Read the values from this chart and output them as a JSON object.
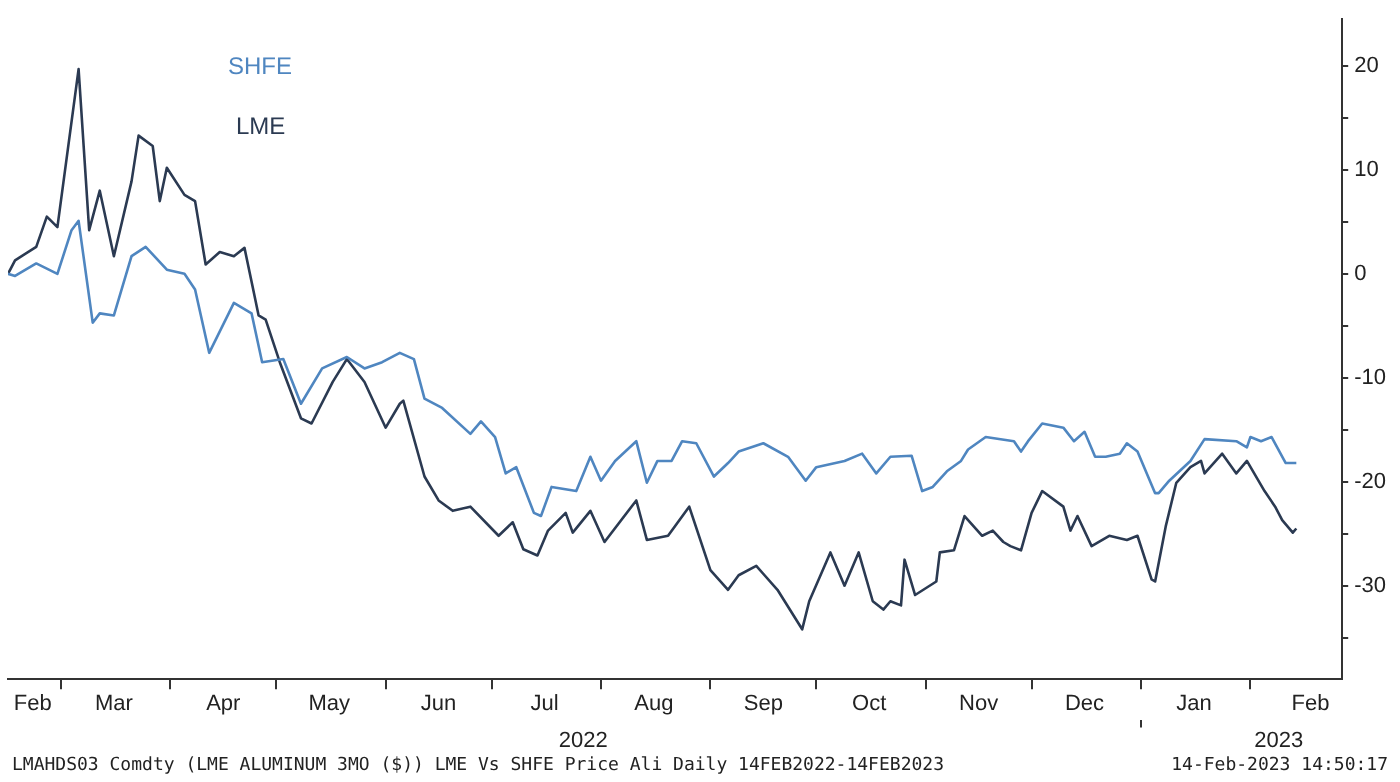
{
  "chart_data": {
    "type": "line",
    "legend": "top left",
    "marker": "none",
    "line_style": "solid",
    "xlim": [
      "2022-02-14",
      "2023-02-27"
    ],
    "xticks": [
      {
        "value": "2022-02-21",
        "label": "Feb"
      },
      {
        "value": "2022-03-01",
        "label": null
      },
      {
        "value": "2022-03-16",
        "label": "Mar"
      },
      {
        "value": "2022-04-01",
        "label": null
      },
      {
        "value": "2022-04-16",
        "label": "Apr"
      },
      {
        "value": "2022-05-01",
        "label": null
      },
      {
        "value": "2022-05-16",
        "label": "May"
      },
      {
        "value": "2022-06-01",
        "label": null
      },
      {
        "value": "2022-06-16",
        "label": "Jun"
      },
      {
        "value": "2022-07-01",
        "label": null
      },
      {
        "value": "2022-07-16",
        "label": "Jul"
      },
      {
        "value": "2022-08-01",
        "label": null
      },
      {
        "value": "2022-08-16",
        "label": "Aug"
      },
      {
        "value": "2022-09-01",
        "label": null
      },
      {
        "value": "2022-09-16",
        "label": "Sep"
      },
      {
        "value": "2022-10-01",
        "label": null
      },
      {
        "value": "2022-10-16",
        "label": "Oct"
      },
      {
        "value": "2022-11-01",
        "label": null
      },
      {
        "value": "2022-11-16",
        "label": "Nov"
      },
      {
        "value": "2022-12-01",
        "label": null
      },
      {
        "value": "2022-12-16",
        "label": "Dec"
      },
      {
        "value": "2023-01-01",
        "label": null
      },
      {
        "value": "2023-01-16",
        "label": "Jan"
      },
      {
        "value": "2023-02-01",
        "label": null
      },
      {
        "value": "2023-02-18",
        "label": "Feb"
      }
    ],
    "x2lim": [
      "2022-02-14",
      "2023-02-27"
    ],
    "x2ticks": [
      {
        "value": "2022-07-27",
        "label": "2022"
      },
      {
        "value": "2023-01-01",
        "label": null
      },
      {
        "value": "2023-02-09",
        "label": "2023"
      }
    ],
    "ylim": [
      -39,
      24.5
    ],
    "yticks": [
      -30,
      {
        "value": -35,
        "label": null
      },
      {
        "value": -25,
        "label": null
      },
      -20,
      {
        "value": -15,
        "label": null
      },
      -10,
      {
        "value": -5,
        "label": null
      },
      0,
      {
        "value": 5,
        "label": null
      },
      10,
      {
        "value": 15,
        "label": null
      },
      20
    ],
    "annotations": [
      "LMAHDS03 Comdty (LME ALUMINUM  3MO ($)) LME Vs SHFE Price Ali  Daily 14FEB2022-14FEB2023",
      "14-Feb-2023 14:50:17"
    ],
    "series": [
      {
        "name": "SHFE",
        "color": "#4f86c0",
        "x": [
          "2022-02-14",
          "2022-02-16",
          "2022-02-22",
          "2022-02-28",
          "2022-03-04",
          "2022-03-06",
          "2022-03-10",
          "2022-03-12",
          "2022-03-16",
          "2022-03-21",
          "2022-03-25",
          "2022-03-31",
          "2022-04-05",
          "2022-04-08",
          "2022-04-12",
          "2022-04-19",
          "2022-04-24",
          "2022-04-27",
          "2022-05-03",
          "2022-05-08",
          "2022-05-14",
          "2022-05-21",
          "2022-05-26",
          "2022-05-31",
          "2022-06-05",
          "2022-06-09",
          "2022-06-12",
          "2022-06-17",
          "2022-06-25",
          "2022-06-28",
          "2022-07-02",
          "2022-07-05",
          "2022-07-08",
          "2022-07-13",
          "2022-07-15",
          "2022-07-18",
          "2022-07-25",
          "2022-07-29",
          "2022-08-01",
          "2022-08-05",
          "2022-08-11",
          "2022-08-14",
          "2022-08-17",
          "2022-08-21",
          "2022-08-24",
          "2022-08-28",
          "2022-09-02",
          "2022-09-06",
          "2022-09-09",
          "2022-09-16",
          "2022-09-23",
          "2022-09-28",
          "2022-10-01",
          "2022-10-09",
          "2022-10-14",
          "2022-10-18",
          "2022-10-22",
          "2022-10-28",
          "2022-10-31",
          "2022-11-03",
          "2022-11-07",
          "2022-11-11",
          "2022-11-13",
          "2022-11-18",
          "2022-11-26",
          "2022-11-28",
          "2022-11-30",
          "2022-12-04",
          "2022-12-10",
          "2022-12-13",
          "2022-12-16",
          "2022-12-19",
          "2022-12-22",
          "2022-12-26",
          "2022-12-28",
          "2022-12-31",
          "2023-01-05",
          "2023-01-06",
          "2023-01-09",
          "2023-01-15",
          "2023-01-19",
          "2023-01-28",
          "2023-01-31",
          "2023-02-01",
          "2023-02-04",
          "2023-02-07",
          "2023-02-11",
          "2023-02-14"
        ],
        "values": [
          0,
          -0.2,
          1,
          0,
          4.2,
          5.1,
          -4.7,
          -3.8,
          -4,
          1.7,
          2.6,
          0.4,
          0,
          -1.5,
          -7.6,
          -2.8,
          -3.8,
          -8.5,
          -8.2,
          -12.5,
          -9.1,
          -8,
          -9.1,
          -8.5,
          -7.6,
          -8.2,
          -12,
          -12.9,
          -15.4,
          -14.2,
          -15.7,
          -19.2,
          -18.6,
          -23,
          -23.3,
          -20.5,
          -20.9,
          -17.6,
          -19.9,
          -18,
          -16.1,
          -20.1,
          -18,
          -18,
          -16.1,
          -16.3,
          -19.5,
          -18.2,
          -17.1,
          -16.3,
          -17.6,
          -19.9,
          -18.6,
          -18,
          -17.3,
          -19.2,
          -17.6,
          -17.5,
          -20.9,
          -20.5,
          -19,
          -18,
          -16.9,
          -15.7,
          -16.1,
          -17.1,
          -16.1,
          -14.4,
          -14.8,
          -16.1,
          -15.2,
          -17.6,
          -17.6,
          -17.3,
          -16.3,
          -17.1,
          -21.1,
          -21.1,
          -19.9,
          -18,
          -15.9,
          -16.1,
          -16.7,
          -15.7,
          -16.1,
          -15.7,
          -18.2,
          -18.2
        ]
      },
      {
        "name": "LME",
        "color": "#2b3a52",
        "x": [
          "2022-02-14",
          "2022-02-16",
          "2022-02-22",
          "2022-02-25",
          "2022-02-28",
          "2022-03-06",
          "2022-03-09",
          "2022-03-12",
          "2022-03-16",
          "2022-03-21",
          "2022-03-23",
          "2022-03-27",
          "2022-03-29",
          "2022-03-31",
          "2022-04-05",
          "2022-04-08",
          "2022-04-11",
          "2022-04-15",
          "2022-04-19",
          "2022-04-22",
          "2022-04-26",
          "2022-04-28",
          "2022-05-02",
          "2022-05-08",
          "2022-05-11",
          "2022-05-17",
          "2022-05-21",
          "2022-05-26",
          "2022-06-01",
          "2022-06-05",
          "2022-06-06",
          "2022-06-12",
          "2022-06-16",
          "2022-06-20",
          "2022-06-25",
          "2022-07-03",
          "2022-07-07",
          "2022-07-10",
          "2022-07-14",
          "2022-07-17",
          "2022-07-22",
          "2022-07-24",
          "2022-07-29",
          "2022-08-02",
          "2022-08-11",
          "2022-08-14",
          "2022-08-20",
          "2022-08-26",
          "2022-09-01",
          "2022-09-06",
          "2022-09-09",
          "2022-09-14",
          "2022-09-20",
          "2022-09-27",
          "2022-09-29",
          "2022-10-05",
          "2022-10-09",
          "2022-10-13",
          "2022-10-17",
          "2022-10-20",
          "2022-10-22",
          "2022-10-25",
          "2022-10-26",
          "2022-10-29",
          "2022-11-04",
          "2022-11-05",
          "2022-11-09",
          "2022-11-12",
          "2022-11-17",
          "2022-11-20",
          "2022-11-23",
          "2022-11-25",
          "2022-11-28",
          "2022-12-01",
          "2022-12-04",
          "2022-12-10",
          "2022-12-12",
          "2022-12-14",
          "2022-12-18",
          "2022-12-23",
          "2022-12-28",
          "2022-12-31",
          "2023-01-04",
          "2023-01-05",
          "2023-01-08",
          "2023-01-11",
          "2023-01-15",
          "2023-01-18",
          "2023-01-19",
          "2023-01-24",
          "2023-01-28",
          "2023-01-31",
          "2023-02-05",
          "2023-02-08",
          "2023-02-10",
          "2023-02-13",
          "2023-02-14"
        ],
        "values": [
          0,
          1.3,
          2.6,
          5.5,
          4.5,
          19.7,
          4.2,
          8,
          1.7,
          8.9,
          13.3,
          12.3,
          7,
          10.2,
          7.6,
          7,
          0.9,
          2.1,
          1.7,
          2.5,
          -4,
          -4.4,
          -8.5,
          -13.9,
          -14.4,
          -10.4,
          -8.2,
          -10.4,
          -14.8,
          -12.5,
          -12.2,
          -19.5,
          -21.8,
          -22.8,
          -22.4,
          -25.2,
          -23.9,
          -26.5,
          -27.1,
          -24.7,
          -23,
          -24.9,
          -22.8,
          -25.8,
          -21.8,
          -25.6,
          -25.2,
          -22.4,
          -28.5,
          -30.4,
          -29,
          -28.1,
          -30.4,
          -34.2,
          -31.5,
          -26.8,
          -30,
          -26.8,
          -31.5,
          -32.3,
          -31.5,
          -31.9,
          -27.5,
          -30.9,
          -29.6,
          -26.8,
          -26.6,
          -23.3,
          -25.2,
          -24.7,
          -25.8,
          -26.2,
          -26.6,
          -23,
          -20.9,
          -22.4,
          -24.7,
          -23.3,
          -26.2,
          -25.2,
          -25.6,
          -25.2,
          -29.4,
          -29.6,
          -24.3,
          -20.1,
          -18.6,
          -18,
          -19.2,
          -17.3,
          -19.2,
          -18,
          -20.9,
          -22.4,
          -23.7,
          -24.9,
          -24.5
        ]
      }
    ]
  }
}
